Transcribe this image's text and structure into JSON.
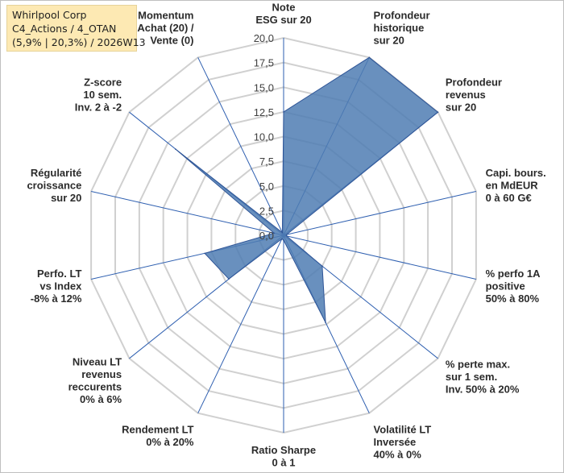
{
  "title": {
    "lines": [
      "Whirlpool Corp",
      "C4_Actions / 4_OTAN",
      "(5,9% | 20,3%) / 2026W13"
    ]
  },
  "chart_data": {
    "type": "radar",
    "series": [
      {
        "color": "#4f7db3",
        "values": [
          12.5,
          20.0,
          20.0,
          0.3,
          0.3,
          5.0,
          9.8,
          0.5,
          0.4,
          7.1,
          8.2,
          1.0,
          14.0,
          0.3
        ]
      }
    ],
    "axes": [
      [
        "Note",
        "ESG sur 20"
      ],
      [
        "Profondeur",
        "historique",
        "sur 20"
      ],
      [
        "Profondeur",
        "revenus",
        "sur 20"
      ],
      [
        "Capi. bours.",
        "en MdEUR",
        "0 à 60 G€"
      ],
      [
        "% perfo 1A",
        "positive",
        "50% à 80%"
      ],
      [
        "% perte max.",
        "sur 1 sem.",
        "Inv. 50% à 20%"
      ],
      [
        "Volatilité LT",
        "Inversée",
        "40% à 0%"
      ],
      [
        "Ratio Sharpe",
        "0 à 1"
      ],
      [
        "Rendement LT",
        "0% à 20%"
      ],
      [
        "Niveau LT",
        "revenus",
        "reccurents",
        "0% à 6%"
      ],
      [
        "Perfo. LT",
        "vs Index",
        "-8% à 12%"
      ],
      [
        "Régularité",
        "croissance",
        "sur 20"
      ],
      [
        "Z-score",
        "10 sem.",
        "Inv. 2 à -2"
      ],
      [
        "Momentum",
        "Achat (20) /",
        "Vente (0)"
      ]
    ],
    "ticks": [
      "0,0",
      "2,5",
      "5,0",
      "7,5",
      "10,0",
      "12,5",
      "15,0",
      "17,5",
      "20,0"
    ],
    "rlim": [
      0,
      20
    ],
    "grid": true,
    "colors": {
      "fill": "#4f7db3",
      "stroke": "#2f5597",
      "spoke": "#2e5fb0",
      "grid": "#d0d0d0"
    }
  }
}
